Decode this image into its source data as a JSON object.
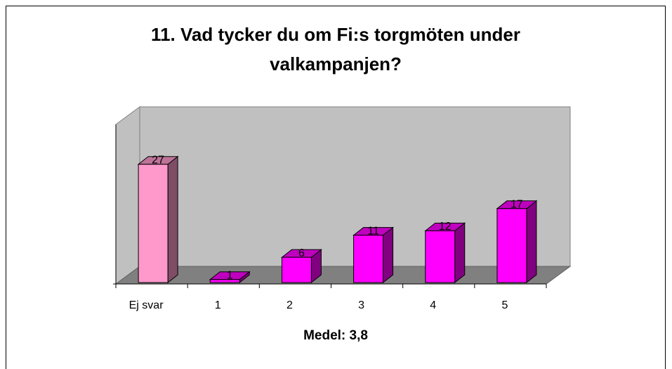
{
  "chart_data": {
    "type": "bar3d",
    "title": "11. Vad tycker du om Fi:s torgmöten under valkampanjen?",
    "categories": [
      "Ej svar",
      "1",
      "2",
      "3",
      "4",
      "5"
    ],
    "values": [
      27,
      1,
      6,
      11,
      12,
      17
    ],
    "colors": [
      "#ff99cc",
      "#ff00ff",
      "#ff00ff",
      "#ff00ff",
      "#ff00ff",
      "#ff00ff"
    ],
    "ylim": [
      0,
      36
    ],
    "annotation": "Medel: 3,8"
  }
}
